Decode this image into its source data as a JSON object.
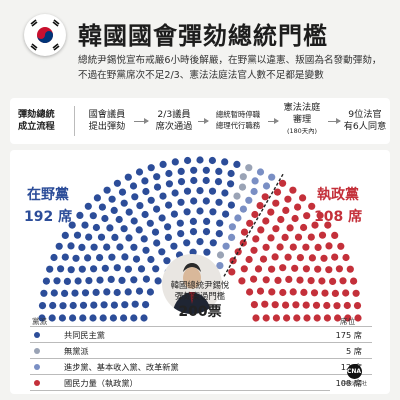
{
  "header": {
    "title": "韓國國會彈劾總統門檻",
    "subtitle_lines": [
      "總統尹錫悅宣布戒嚴6小時後解嚴，在野黨以違憲、叛國為名發動彈劾，",
      "不過在野黨席次不足2/3、憲法法庭法官人數不足都是變數"
    ]
  },
  "flow": {
    "heading_lines": [
      "彈劾總統",
      "成立流程"
    ],
    "steps": [
      {
        "lines": [
          "國會議員",
          "提出彈劾"
        ]
      },
      {
        "lines": [
          "2/3議員",
          "席次通過"
        ]
      },
      {
        "lines": [
          "總統暫時停職",
          "總理代行職務"
        ]
      },
      {
        "lines": [
          "憲法法庭",
          "審理"
        ],
        "note": "(180天內)"
      },
      {
        "lines": [
          "9位法官",
          "有6人同意"
        ]
      }
    ]
  },
  "chart_data": {
    "type": "parliament",
    "total_seats": 300,
    "threshold": 200,
    "threshold_label": "200票",
    "opposition": {
      "name": "在野黨",
      "seats_label": "192 席",
      "seats": 192
    },
    "ruling": {
      "name": "執政黨",
      "seats_label": "108 席",
      "seats": 108
    },
    "president_caption": [
      "韓國總統尹錫悅",
      "彈劾案過門檻"
    ],
    "legend_header": {
      "party": "黨派",
      "seats": "席位"
    },
    "series": [
      {
        "name": "共同民主黨",
        "value": 175,
        "label": "175 席",
        "color": "#2c4d99"
      },
      {
        "name": "無黨派",
        "value": 5,
        "label": "5 席",
        "color": "#9aa3b5"
      },
      {
        "name": "進步黨、基本收入黨、改革新黨",
        "value": 12,
        "label": "12 席",
        "color": "#7a8fc4"
      },
      {
        "name": "國民力量（執政黨）",
        "value": 108,
        "label": "108 席",
        "color": "#c4303a"
      }
    ]
  },
  "logo": {
    "mark": "CNA",
    "text": "中央通訊社"
  }
}
